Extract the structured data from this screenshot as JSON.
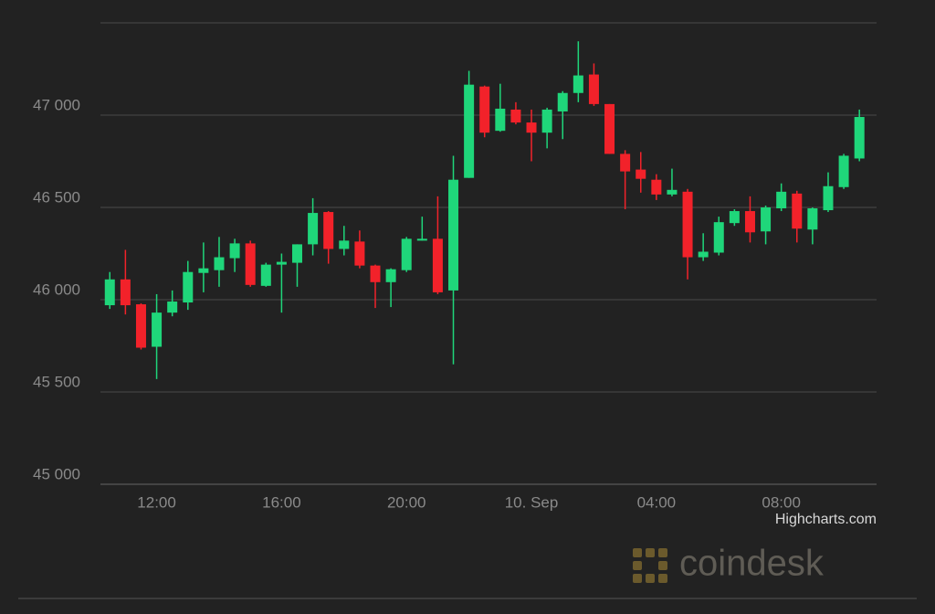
{
  "chart_data": {
    "type": "candlestick",
    "x": [
      -13.5,
      -13,
      -12.5,
      -12,
      -11.5,
      -11,
      -10.5,
      -10,
      -9.5,
      -9,
      -8.5,
      -8,
      -7.5,
      -7,
      -6.5,
      -6,
      -5.5,
      -5,
      -4.5,
      -4,
      -3.5,
      -3,
      -2.5,
      -2,
      -1.5,
      -1,
      -0.5,
      0,
      0.5,
      1,
      1.5,
      2,
      2.5,
      3,
      3.5,
      4,
      4.5,
      5,
      5.5,
      6,
      6.5,
      7,
      7.5,
      8,
      8.5,
      9,
      9.5,
      10,
      10.5
    ],
    "open": [
      45970,
      46110,
      45975,
      45745,
      45930,
      45985,
      46145,
      46160,
      46225,
      46305,
      46075,
      46190,
      46200,
      46300,
      46475,
      46275,
      46315,
      46185,
      46095,
      46160,
      46320,
      46330,
      46050,
      46660,
      47155,
      46915,
      47030,
      46960,
      46905,
      47020,
      47120,
      47220,
      47060,
      46790,
      46705,
      46650,
      46570,
      46585,
      46230,
      46255,
      46415,
      46480,
      46370,
      46495,
      46575,
      46380,
      46485,
      46610,
      46765
    ],
    "high": [
      46150,
      46270,
      45980,
      46030,
      46050,
      46210,
      46310,
      46340,
      46330,
      46320,
      46200,
      46250,
      46300,
      46550,
      46480,
      46400,
      46375,
      46190,
      46170,
      46340,
      46450,
      46560,
      46780,
      47240,
      47160,
      47170,
      47070,
      47030,
      47040,
      47130,
      47400,
      47280,
      47060,
      46810,
      46800,
      46680,
      46710,
      46600,
      46360,
      46450,
      46490,
      46560,
      46510,
      46630,
      46590,
      46500,
      46690,
      46790,
      47030
    ],
    "low": [
      45950,
      45920,
      45730,
      45570,
      45910,
      45945,
      46040,
      46070,
      46150,
      46070,
      46070,
      45930,
      46070,
      46240,
      46195,
      46240,
      46170,
      45955,
      45960,
      46150,
      46320,
      46030,
      45650,
      46660,
      46880,
      46910,
      46950,
      46750,
      46820,
      46870,
      47070,
      47050,
      46790,
      46490,
      46580,
      46540,
      46560,
      46110,
      46210,
      46240,
      46400,
      46310,
      46300,
      46480,
      46310,
      46300,
      46475,
      46600,
      46750
    ],
    "close": [
      46110,
      45970,
      45740,
      45930,
      45990,
      46150,
      46170,
      46230,
      46305,
      46080,
      46190,
      46205,
      46300,
      46470,
      46275,
      46320,
      46185,
      46095,
      46165,
      46330,
      46330,
      46040,
      46650,
      47165,
      46905,
      47035,
      46960,
      46905,
      47030,
      47120,
      47215,
      47060,
      46790,
      46695,
      46655,
      46570,
      46595,
      46230,
      46260,
      46420,
      46480,
      46365,
      46500,
      46585,
      46385,
      46495,
      46615,
      46780,
      46990
    ],
    "up_color": "#1fd67a",
    "down_color": "#f2222a",
    "xlim": [
      -13.8,
      11.05
    ],
    "xticks": [
      {
        "value": -12,
        "label": "12:00"
      },
      {
        "value": -8,
        "label": "16:00"
      },
      {
        "value": -4,
        "label": "20:00"
      },
      {
        "value": 0,
        "label": "10. Sep"
      },
      {
        "value": 4,
        "label": "04:00"
      },
      {
        "value": 8,
        "label": "08:00"
      }
    ],
    "ylim": [
      45000,
      47500
    ],
    "yticks": [
      {
        "value": 45000,
        "label": "45 000"
      },
      {
        "value": 45500,
        "label": "45 500"
      },
      {
        "value": 46000,
        "label": "46 000"
      },
      {
        "value": 46500,
        "label": "46 500"
      },
      {
        "value": 47000,
        "label": "47 000"
      }
    ],
    "grid": true,
    "credit": "Highcharts.com",
    "watermark": "coindesk"
  }
}
